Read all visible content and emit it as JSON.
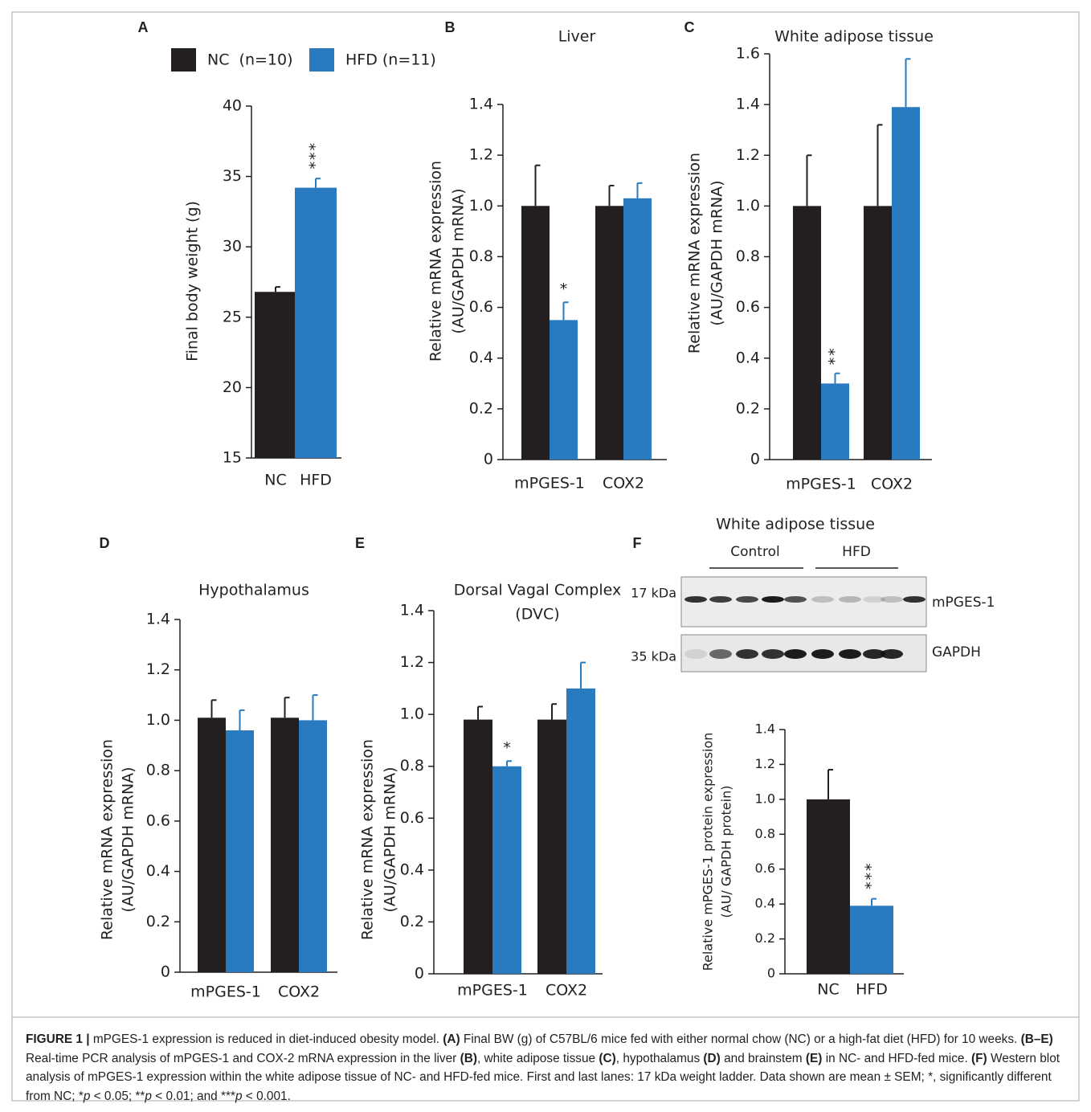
{
  "chart_data": [
    {
      "type": "bar",
      "panel": "A",
      "categories": [
        "NC",
        "HFD"
      ],
      "values": [
        26.8,
        34.2
      ],
      "errors": [
        0.35,
        0.65
      ],
      "colors": [
        "#231f20",
        "#2a7abf"
      ],
      "ylabel": [
        "Final body weight (g)"
      ],
      "ylim": [
        15,
        40
      ],
      "yticks": [
        15,
        20,
        25,
        30,
        35,
        40
      ],
      "legend": [
        {
          "name": "NC  (n=10)",
          "color": "#231f20"
        },
        {
          "name": "HFD (n=11)",
          "color": "#2a7abf"
        }
      ],
      "annotations": [
        {
          "text": "***",
          "category": "HFD"
        }
      ]
    },
    {
      "type": "bar",
      "panel": "B",
      "title": [
        "Liver"
      ],
      "categories": [
        "mPGES-1",
        "COX2"
      ],
      "series": [
        {
          "name": "NC",
          "color": "#231f20",
          "values": [
            1.0,
            1.0
          ],
          "errors": [
            0.16,
            0.08
          ]
        },
        {
          "name": "HFD",
          "color": "#2a7abf",
          "values": [
            0.55,
            1.03
          ],
          "errors": [
            0.07,
            0.06
          ]
        }
      ],
      "ylabel": [
        "Relative mRNA expression",
        "(AU/GAPDH mRNA)"
      ],
      "ylim": [
        0,
        1.4
      ],
      "yticks": [
        0,
        0.2,
        0.4,
        0.6,
        0.8,
        {
          "value": 1,
          "label": "1.0"
        },
        1.2,
        1.4
      ],
      "annotations": [
        {
          "text": "*",
          "category": "mPGES-1",
          "series": "HFD"
        }
      ]
    },
    {
      "type": "bar",
      "panel": "C",
      "title": [
        "White adipose tissue"
      ],
      "categories": [
        "mPGES-1",
        "COX2"
      ],
      "series": [
        {
          "name": "NC",
          "color": "#231f20",
          "values": [
            1.0,
            1.0
          ],
          "errors": [
            0.2,
            0.32
          ]
        },
        {
          "name": "HFD",
          "color": "#2a7abf",
          "values": [
            0.3,
            1.39
          ],
          "errors": [
            0.04,
            0.19
          ]
        }
      ],
      "ylabel": [
        "Relative mRNA expression",
        "(AU/GAPDH mRNA)"
      ],
      "ylim": [
        0,
        1.6
      ],
      "yticks": [
        0,
        0.2,
        0.4,
        0.6,
        0.8,
        {
          "value": 1,
          "label": "1.0"
        },
        1.2,
        1.4,
        1.6
      ],
      "annotations": [
        {
          "text": "**",
          "category": "mPGES-1",
          "series": "HFD"
        }
      ]
    },
    {
      "type": "bar",
      "panel": "D",
      "title": [
        "Hypothalamus"
      ],
      "categories": [
        "mPGES-1",
        "COX2"
      ],
      "series": [
        {
          "name": "NC",
          "color": "#231f20",
          "values": [
            1.01,
            1.01
          ],
          "errors": [
            0.07,
            0.08
          ]
        },
        {
          "name": "HFD",
          "color": "#2a7abf",
          "values": [
            0.96,
            1.0
          ],
          "errors": [
            0.08,
            0.1
          ]
        }
      ],
      "ylabel": [
        "Relative mRNA expression",
        "(AU/GAPDH mRNA)"
      ],
      "ylim": [
        0,
        1.4
      ],
      "yticks": [
        0,
        0.2,
        0.4,
        0.6,
        0.8,
        {
          "value": 1,
          "label": "1.0"
        },
        1.2,
        1.4
      ],
      "annotations": []
    },
    {
      "type": "bar",
      "panel": "E",
      "title": [
        "Dorsal Vagal Complex",
        "(DVC)"
      ],
      "categories": [
        "mPGES-1",
        "COX2"
      ],
      "series": [
        {
          "name": "NC",
          "color": "#231f20",
          "values": [
            0.98,
            0.98
          ],
          "errors": [
            0.05,
            0.06
          ]
        },
        {
          "name": "HFD",
          "color": "#2a7abf",
          "values": [
            0.8,
            1.1
          ],
          "errors": [
            0.02,
            0.1
          ]
        }
      ],
      "ylabel": [
        "Relative mRNA expression",
        "(AU/GAPDH mRNA)"
      ],
      "ylim": [
        0,
        1.4
      ],
      "yticks": [
        0,
        0.2,
        0.4,
        0.6,
        0.8,
        {
          "value": 1,
          "label": "1.0"
        },
        1.2,
        1.4
      ],
      "annotations": [
        {
          "text": "*",
          "category": "mPGES-1",
          "series": "HFD"
        }
      ]
    },
    {
      "type": "bar",
      "panel": "F",
      "categories": [
        "NC",
        "HFD"
      ],
      "values": [
        1.0,
        0.39
      ],
      "errors": [
        0.17,
        0.04
      ],
      "colors": [
        "#231f20",
        "#2a7abf"
      ],
      "ylabel": [
        "Relative mPGES-1 protein expression",
        "(AU/ GAPDH protein)"
      ],
      "ylim": [
        0,
        1.4
      ],
      "yticks": [
        0,
        0.2,
        0.4,
        0.6,
        0.8,
        {
          "value": 1,
          "label": "1.0"
        },
        1.2,
        1.4
      ],
      "annotations": [
        {
          "text": "***",
          "category": "HFD"
        }
      ],
      "blot": {
        "title": "White adipose tissue",
        "groups": [
          "Control",
          "HFD"
        ],
        "markers": [
          "17 kDa",
          "35 kDa"
        ],
        "bands": [
          "mPGES-1",
          "GAPDH"
        ]
      }
    }
  ],
  "caption": [
    {
      "text": "FIGURE 1 |",
      "style": "bold"
    },
    {
      "text": " mPGES-1 expression is reduced in diet-induced obesity model. "
    },
    {
      "text": "(A)",
      "style": "bold"
    },
    {
      "text": " Final BW (g) of C57BL/6 mice fed with either normal chow (NC) or a high-fat diet (HFD) for 10 weeks. "
    },
    {
      "text": "(B–E)",
      "style": "bold"
    },
    {
      "text": " Real-time PCR analysis of mPGES-1 and COX-2 mRNA expression in the liver "
    },
    {
      "text": "(B)",
      "style": "bold"
    },
    {
      "text": ", white adipose tissue "
    },
    {
      "text": "(C)",
      "style": "bold"
    },
    {
      "text": ", hypothalamus "
    },
    {
      "text": "(D)",
      "style": "bold"
    },
    {
      "text": " and brainstem "
    },
    {
      "text": "(E)",
      "style": "bold"
    },
    {
      "text": " in NC- and HFD-fed mice. "
    },
    {
      "text": "(F)",
      "style": "bold"
    },
    {
      "text": " Western blot analysis of mPGES-1 expression within the white adipose tissue of NC- and HFD-fed mice. First and last lanes: 17 kDa weight ladder. Data shown are mean ± SEM; *, significantly different from NC; *"
    },
    {
      "text": "p",
      "style": "italic"
    },
    {
      "text": " < 0.05; **"
    },
    {
      "text": "p",
      "style": "italic"
    },
    {
      "text": " < 0.01; and ***"
    },
    {
      "text": "p",
      "style": "italic"
    },
    {
      "text": " < 0.001."
    }
  ]
}
